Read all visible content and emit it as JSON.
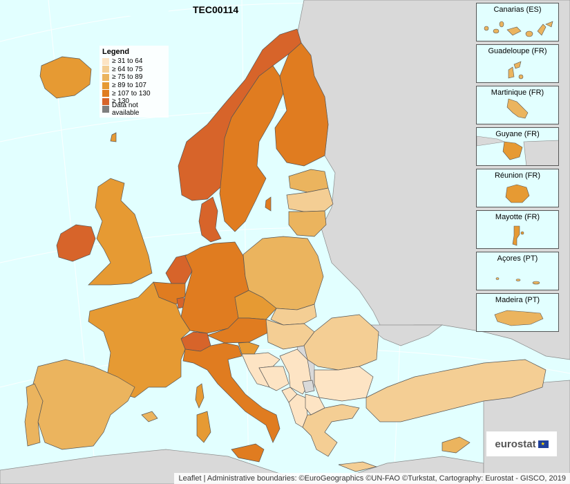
{
  "title": "TEC00114",
  "colors": {
    "sea": "#e2ffff",
    "non_eu": "#d9d9d9",
    "c31": "#fde4c4",
    "c64": "#f4ce94",
    "c75": "#ebb45e",
    "c89": "#e69a33",
    "c107": "#e07c20",
    "c130": "#d7642a",
    "na": "#7f7f7f"
  },
  "legend": {
    "title": "Legend",
    "items": [
      {
        "label": "≥ 31 to 64",
        "color": "#fde4c4"
      },
      {
        "label": "≥ 64 to 75",
        "color": "#f4ce94"
      },
      {
        "label": "≥ 75 to 89",
        "color": "#ebb45e"
      },
      {
        "label": "≥ 89 to 107",
        "color": "#e69a33"
      },
      {
        "label": "≥ 107 to 130",
        "color": "#e07c20"
      },
      {
        "label": "≥ 130",
        "color": "#d7642a"
      },
      {
        "label": "Data not available",
        "color": "#7f7f7f"
      }
    ]
  },
  "insets": [
    {
      "label": "Canarias (ES)"
    },
    {
      "label": "Guadeloupe (FR)"
    },
    {
      "label": "Martinique (FR)"
    },
    {
      "label": "Guyane (FR)"
    },
    {
      "label": "Réunion (FR)"
    },
    {
      "label": "Mayotte (FR)"
    },
    {
      "label": "Açores (PT)"
    },
    {
      "label": "Madeira (PT)"
    }
  ],
  "logo": {
    "text": "eurostat"
  },
  "attribution": "Leaflet | Administrative boundaries: ©EuroGeographics ©UN-FAO ©Turkstat, Cartography: Eurostat - GISCO, 2019"
}
